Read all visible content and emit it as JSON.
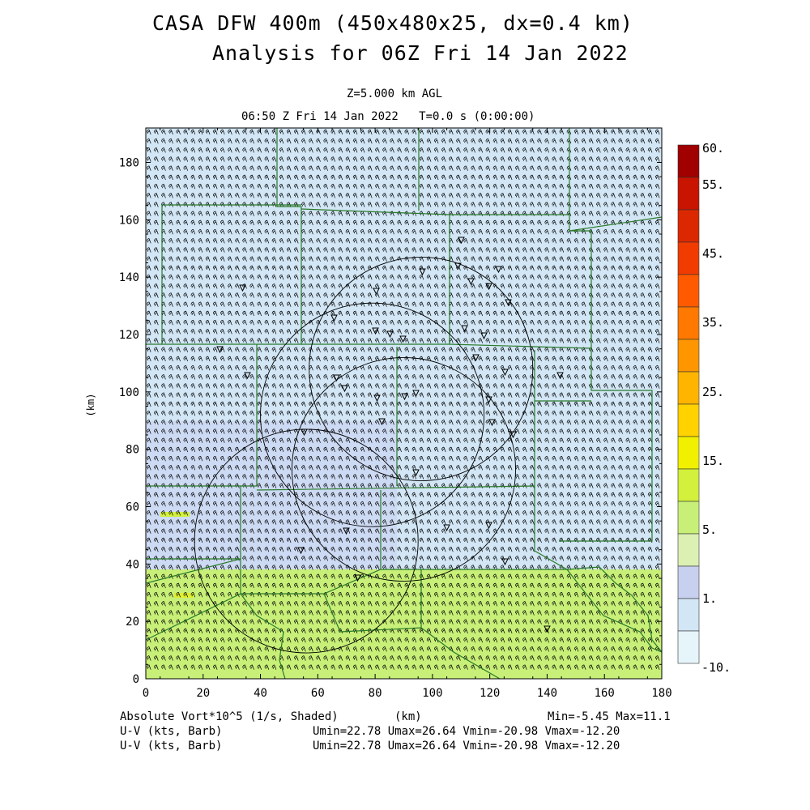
{
  "title_line1": "CASA DFW 400m (450x480x25, dx=0.4 km)",
  "title_line2": "Analysis for 06Z Fri 14 Jan 2022",
  "level_label": "Z=5.000 km AGL",
  "time_label": "06:50 Z Fri 14 Jan 2022   T=0.0 s (0:00:00)",
  "axes": {
    "x_label": "(km)",
    "y_label": "(km)",
    "x_ticks": [
      "0",
      "20",
      "40",
      "60",
      "80",
      "100",
      "120",
      "140",
      "160",
      "180"
    ],
    "y_ticks": [
      "0",
      "20",
      "40",
      "60",
      "80",
      "100",
      "120",
      "140",
      "160",
      "180"
    ],
    "x_range_km": [
      0,
      180
    ],
    "y_range_km": [
      0,
      192
    ]
  },
  "colorbar": {
    "labels": [
      "60.",
      "55.",
      "45.",
      "35.",
      "25.",
      "15.",
      "5.",
      "1.",
      "-10."
    ],
    "colors": [
      "#a00000",
      "#c81400",
      "#dc2800",
      "#f03c00",
      "#ff5a00",
      "#ff7800",
      "#ff9600",
      "#ffb400",
      "#ffd200",
      "#f0f000",
      "#d2f03c",
      "#c8f078",
      "#dcf0b4",
      "#c8d0f0",
      "#d2e6f5",
      "#e6f5fa"
    ]
  },
  "footer": {
    "field_label": "Absolute Vort*10^5 (1/s, Shaded)",
    "units": "(km)",
    "minmax": "Min=-5.45 Max=11.1",
    "line2_label": "U-V (kts, Barb)",
    "line2_stats": "Umin=22.78 Umax=26.64 Vmin=-20.98 Vmax=-12.20",
    "line3_label": "U-V (kts, Barb)",
    "line3_stats": "Umin=22.78 Umax=26.64 Vmin=-20.98 Vmax=-12.20"
  },
  "map_style": {
    "upper_fill": "#d2e6f5",
    "lower_fill": "#c8f078",
    "weak_fill": "#c8d0f0",
    "county_color": "#2a7a2a",
    "barb_color": "#000000"
  },
  "radar_rings_km": [
    {
      "cx": 96,
      "cy": 108,
      "r": 39
    },
    {
      "cx": 79,
      "cy": 92,
      "r": 39
    },
    {
      "cx": 90,
      "cy": 73,
      "r": 39
    },
    {
      "cx": 56,
      "cy": 48,
      "r": 39
    }
  ]
}
